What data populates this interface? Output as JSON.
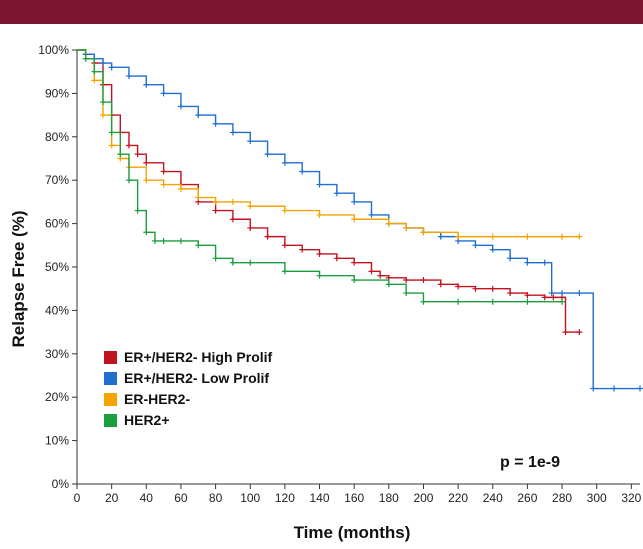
{
  "header": {
    "bar_color": "#7b1530"
  },
  "chart_data": {
    "type": "line",
    "step": true,
    "xlabel": "Time (months)",
    "ylabel": "Relapse Free (%)",
    "xlim": [
      0,
      325
    ],
    "ylim": [
      0,
      100
    ],
    "x_ticks": [
      0,
      20,
      40,
      60,
      80,
      100,
      120,
      140,
      160,
      180,
      200,
      220,
      240,
      260,
      280,
      300,
      320
    ],
    "y_ticks": [
      0,
      10,
      20,
      30,
      40,
      50,
      60,
      70,
      80,
      90,
      100
    ],
    "y_tick_suffix": "%",
    "grid": false,
    "legend_position": "bottom-left",
    "annotation": "p = 1e-9",
    "series": [
      {
        "name": "ER+/HER2- High Prolif",
        "color": "#c1121f",
        "x": [
          0,
          5,
          10,
          15,
          20,
          25,
          30,
          35,
          40,
          50,
          60,
          70,
          80,
          90,
          100,
          110,
          120,
          130,
          140,
          150,
          160,
          170,
          175,
          180,
          190,
          200,
          210,
          220,
          230,
          240,
          250,
          260,
          270,
          275,
          280,
          282,
          290
        ],
        "y": [
          100,
          99,
          97,
          92,
          85,
          81,
          78,
          76,
          74,
          72,
          69,
          65,
          63,
          61,
          59,
          57,
          55,
          54,
          53,
          52,
          51,
          49,
          48,
          47.5,
          47,
          47,
          46,
          45.5,
          45,
          45,
          44,
          43.5,
          43,
          43,
          43,
          35,
          35
        ]
      },
      {
        "name": "ER+/HER2- Low Prolif",
        "color": "#1f6fd1",
        "x": [
          0,
          5,
          10,
          15,
          20,
          30,
          40,
          50,
          60,
          70,
          80,
          90,
          100,
          110,
          120,
          130,
          140,
          150,
          160,
          170,
          180,
          190,
          200,
          210,
          220,
          230,
          240,
          250,
          260,
          270,
          274,
          280,
          290,
          298,
          310,
          325
        ],
        "y": [
          100,
          99,
          98,
          97,
          96,
          94,
          92,
          90,
          87,
          85,
          83,
          81,
          79,
          76,
          74,
          72,
          69,
          67,
          65,
          62,
          60,
          59,
          58,
          57,
          56,
          55,
          54,
          52,
          51,
          51,
          44,
          44,
          44,
          22,
          22,
          22
        ]
      },
      {
        "name": "ER-HER2-",
        "color": "#f5a300",
        "x": [
          0,
          5,
          10,
          15,
          20,
          25,
          30,
          40,
          50,
          60,
          70,
          80,
          90,
          100,
          120,
          140,
          160,
          180,
          190,
          200,
          220,
          240,
          260,
          280,
          290
        ],
        "y": [
          100,
          98,
          93,
          85,
          78,
          75,
          73,
          70,
          69,
          68,
          66,
          65,
          65,
          64,
          63,
          62,
          61,
          60,
          59,
          58,
          57,
          57,
          57,
          57,
          57
        ]
      },
      {
        "name": "HER2+",
        "color": "#1a9e3f",
        "x": [
          0,
          5,
          10,
          15,
          20,
          25,
          30,
          35,
          40,
          45,
          50,
          60,
          70,
          80,
          90,
          100,
          120,
          140,
          160,
          180,
          190,
          200,
          220,
          240,
          260,
          280
        ],
        "y": [
          100,
          98,
          95,
          88,
          81,
          76,
          70,
          63,
          58,
          56,
          56,
          56,
          55,
          52,
          51,
          51,
          49,
          48,
          47,
          46,
          44,
          42,
          42,
          42,
          42,
          42
        ]
      }
    ]
  }
}
